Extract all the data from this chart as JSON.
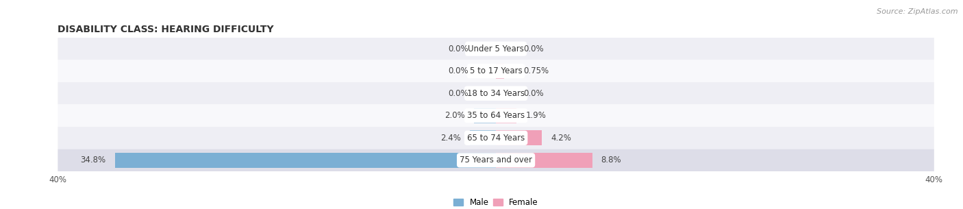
{
  "title": "DISABILITY CLASS: HEARING DIFFICULTY",
  "source": "Source: ZipAtlas.com",
  "categories": [
    "Under 5 Years",
    "5 to 17 Years",
    "18 to 34 Years",
    "35 to 64 Years",
    "65 to 74 Years",
    "75 Years and over"
  ],
  "male_values": [
    0.0,
    0.0,
    0.0,
    2.0,
    2.4,
    34.8
  ],
  "female_values": [
    0.0,
    0.75,
    0.0,
    1.9,
    4.2,
    8.8
  ],
  "male_color": "#7bafd4",
  "female_color": "#f0a0b8",
  "axis_max": 40.0,
  "bar_height": 0.68,
  "title_fontsize": 10,
  "label_fontsize": 8.5,
  "value_fontsize": 8.5,
  "tick_fontsize": 8.5,
  "source_fontsize": 8,
  "bg_color": "#ffffff",
  "row_colors": [
    "#eeeef4",
    "#f8f8fb",
    "#eeeef4",
    "#f8f8fb",
    "#eeeef4",
    "#dddde8"
  ]
}
